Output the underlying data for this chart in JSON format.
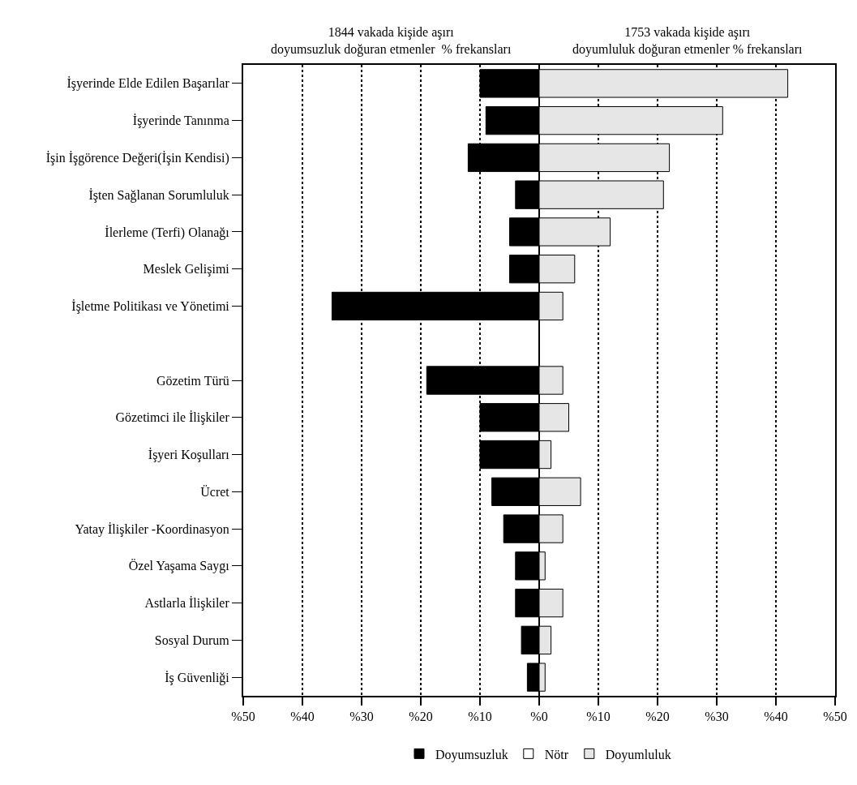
{
  "chart_data": {
    "type": "bar",
    "orientation": "horizontal",
    "stacked": true,
    "categories": [
      "İşyerinde Elde Edilen Başarılar",
      "İşyerinde Tanınma",
      "İşin İşgörence Değeri(İşin Kendisi)",
      "İşten Sağlanan Sorumluluk",
      "İlerleme (Terfi) Olanağı",
      "Meslek Gelişimi",
      "İşletme Politikası ve Yönetimi",
      null,
      "Gözetim Türü",
      "Gözetimci ile İlişkiler",
      "İşyeri Koşulları",
      "Ücret",
      "Yatay İlişkiler -Koordinasyon",
      "Özel Yaşama Saygı",
      "Astlarla İlişkiler",
      "Sosyal Durum",
      "İş Güvenliği"
    ],
    "series": [
      {
        "name": "Doyumsuzluk",
        "color": "#000000",
        "values": [
          -10,
          -9,
          -12,
          -4,
          -5,
          -5,
          -35,
          null,
          -19,
          -10,
          -10,
          -8,
          -6,
          -4,
          -4,
          -3,
          -2
        ]
      },
      {
        "name": "Nötr",
        "color": "#ffffff",
        "values": [
          null,
          null,
          null,
          null,
          null,
          null,
          null,
          null,
          null,
          null,
          null,
          null,
          null,
          null,
          null,
          null,
          null
        ]
      },
      {
        "name": "Doyumluluk",
        "color": "#e6e6e6",
        "values": [
          42,
          31,
          22,
          21,
          12,
          6,
          4,
          null,
          4,
          5,
          2,
          7,
          4,
          1,
          4,
          2,
          1
        ]
      }
    ],
    "xlim": [
      -50,
      50
    ],
    "xticks": [
      {
        "value": -50,
        "label": "%50"
      },
      {
        "value": -40,
        "label": "%40"
      },
      {
        "value": -30,
        "label": "%30"
      },
      {
        "value": -20,
        "label": "%20"
      },
      {
        "value": -10,
        "label": "%10"
      },
      {
        "value": 0,
        "label": "%0"
      },
      {
        "value": 10,
        "label": "%10"
      },
      {
        "value": 20,
        "label": "%20"
      },
      {
        "value": 30,
        "label": "%30"
      },
      {
        "value": 40,
        "label": "%40"
      },
      {
        "value": 50,
        "label": "%50"
      }
    ],
    "grid": "x",
    "legend": "bottom",
    "annotations": [
      "1844 vakada kişide aşırı doyumsuzluk doğuran etmenler  % frekansları",
      "1753 vakada kişide aşırı doyumluluk doğuran etmenler % frekansları"
    ]
  }
}
